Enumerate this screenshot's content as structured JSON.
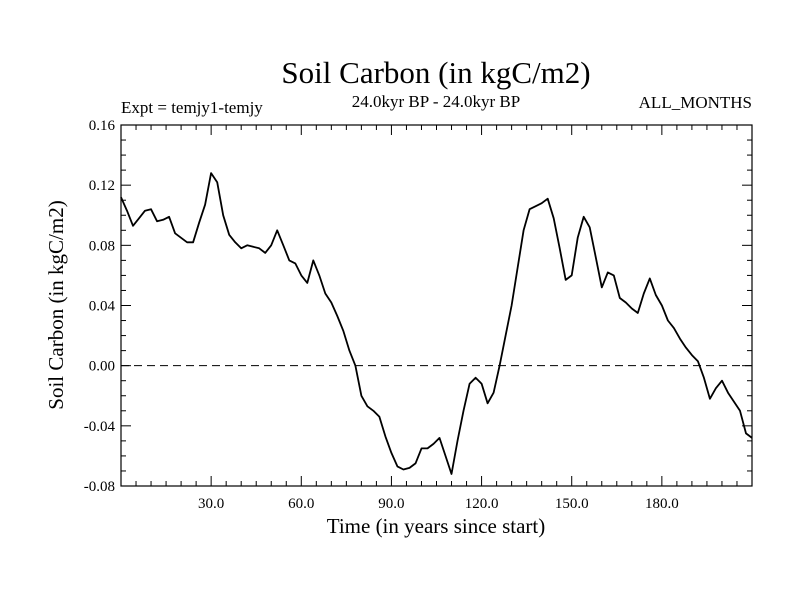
{
  "colors": {
    "background": "#ffffff",
    "ink": "#000000"
  },
  "chart_data": {
    "type": "line",
    "title": "Soil Carbon (in kgC/m2)",
    "subtitle": "24.0kyr BP - 24.0kyr BP",
    "left_note": "Expt = temjy1-temjy",
    "right_note": "ALL_MONTHS",
    "xlabel": "Time (in years since start)",
    "ylabel": "Soil Carbon (in kgC/m2)",
    "xlim": [
      0,
      210
    ],
    "ylim": [
      -0.08,
      0.16
    ],
    "xticks": [
      30,
      60,
      90,
      120,
      150,
      180
    ],
    "xtick_labels": [
      "30.0",
      "60.0",
      "90.0",
      "120.0",
      "150.0",
      "180.0"
    ],
    "yticks": [
      -0.08,
      -0.04,
      0.0,
      0.04,
      0.08,
      0.12,
      0.16
    ],
    "ytick_labels": [
      "-0.08",
      "-0.04",
      "0.00",
      "0.04",
      "0.08",
      "0.12",
      "0.16"
    ],
    "reference_line": {
      "y": 0.0,
      "style": "dashed"
    },
    "series": [
      {
        "name": "Soil Carbon",
        "x": [
          0,
          2,
          4,
          6,
          8,
          10,
          12,
          14,
          16,
          18,
          20,
          22,
          24,
          26,
          28,
          30,
          32,
          34,
          36,
          38,
          40,
          42,
          44,
          46,
          48,
          50,
          52,
          54,
          56,
          58,
          60,
          62,
          64,
          66,
          68,
          70,
          72,
          74,
          76,
          78,
          80,
          82,
          84,
          86,
          88,
          90,
          92,
          94,
          96,
          98,
          100,
          102,
          104,
          106,
          108,
          110,
          112,
          114,
          116,
          118,
          120,
          122,
          124,
          126,
          128,
          130,
          132,
          134,
          136,
          138,
          140,
          142,
          144,
          146,
          148,
          150,
          152,
          154,
          156,
          158,
          160,
          162,
          164,
          166,
          168,
          170,
          172,
          174,
          176,
          178,
          180,
          182,
          184,
          186,
          188,
          190,
          192,
          194,
          196,
          198,
          200,
          202,
          204,
          206,
          208,
          210
        ],
        "values": [
          0.112,
          0.103,
          0.093,
          0.098,
          0.103,
          0.104,
          0.096,
          0.097,
          0.099,
          0.088,
          0.085,
          0.082,
          0.082,
          0.095,
          0.107,
          0.128,
          0.122,
          0.1,
          0.087,
          0.082,
          0.078,
          0.08,
          0.079,
          0.078,
          0.075,
          0.08,
          0.09,
          0.08,
          0.07,
          0.068,
          0.06,
          0.055,
          0.07,
          0.06,
          0.048,
          0.042,
          0.033,
          0.023,
          0.01,
          0.0,
          -0.02,
          -0.027,
          -0.03,
          -0.034,
          -0.047,
          -0.058,
          -0.067,
          -0.069,
          -0.068,
          -0.065,
          -0.055,
          -0.055,
          -0.052,
          -0.048,
          -0.06,
          -0.072,
          -0.05,
          -0.03,
          -0.012,
          -0.008,
          -0.012,
          -0.025,
          -0.018,
          0.0,
          0.02,
          0.04,
          0.065,
          0.09,
          0.104,
          0.106,
          0.108,
          0.111,
          0.098,
          0.078,
          0.057,
          0.06,
          0.085,
          0.099,
          0.092,
          0.072,
          0.052,
          0.062,
          0.06,
          0.045,
          0.042,
          0.038,
          0.035,
          0.048,
          0.058,
          0.047,
          0.04,
          0.03,
          0.025,
          0.018,
          0.012,
          0.007,
          0.003,
          -0.008,
          -0.022,
          -0.015,
          -0.01,
          -0.018,
          -0.024,
          -0.03,
          -0.045,
          -0.048
        ]
      }
    ]
  }
}
